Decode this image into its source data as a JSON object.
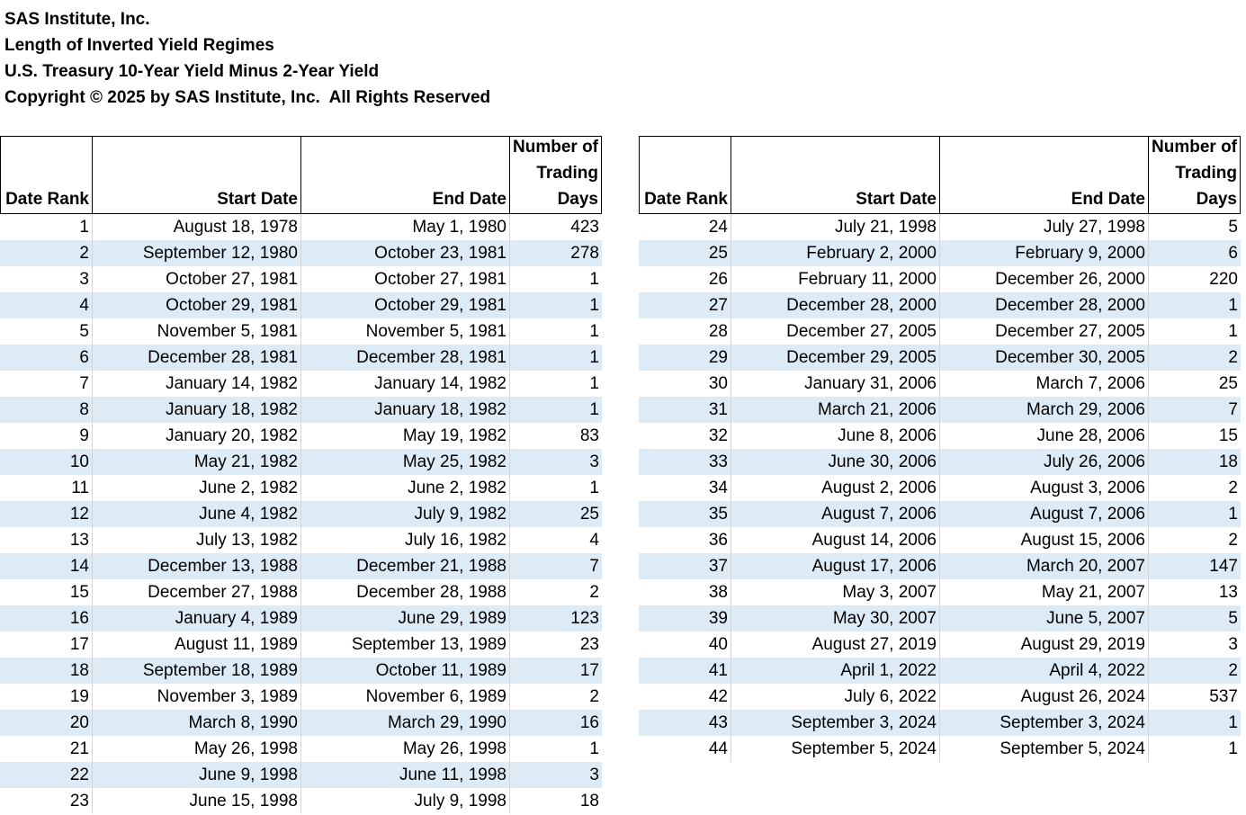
{
  "header": {
    "lines": [
      "SAS Institute, Inc.",
      "Length of Inverted Yield Regimes",
      "U.S. Treasury 10-Year Yield Minus 2-Year Yield",
      "Copyright © 2025 by SAS Institute, Inc.  All Rights Reserved"
    ]
  },
  "tables": [
    {
      "columns": [
        "Date Rank",
        "Start Date",
        "End Date",
        "Number of Trading Days"
      ],
      "rows": [
        [
          1,
          "August 18, 1978",
          "May 1, 1980",
          423
        ],
        [
          2,
          "September 12, 1980",
          "October 23, 1981",
          278
        ],
        [
          3,
          "October 27, 1981",
          "October 27, 1981",
          1
        ],
        [
          4,
          "October 29, 1981",
          "October 29, 1981",
          1
        ],
        [
          5,
          "November 5, 1981",
          "November 5, 1981",
          1
        ],
        [
          6,
          "December 28, 1981",
          "December 28, 1981",
          1
        ],
        [
          7,
          "January 14, 1982",
          "January 14, 1982",
          1
        ],
        [
          8,
          "January 18, 1982",
          "January 18, 1982",
          1
        ],
        [
          9,
          "January 20, 1982",
          "May 19, 1982",
          83
        ],
        [
          10,
          "May 21, 1982",
          "May 25, 1982",
          3
        ],
        [
          11,
          "June 2, 1982",
          "June 2, 1982",
          1
        ],
        [
          12,
          "June 4, 1982",
          "July 9, 1982",
          25
        ],
        [
          13,
          "July 13, 1982",
          "July 16, 1982",
          4
        ],
        [
          14,
          "December 13, 1988",
          "December 21, 1988",
          7
        ],
        [
          15,
          "December 27, 1988",
          "December 28, 1988",
          2
        ],
        [
          16,
          "January 4, 1989",
          "June 29, 1989",
          123
        ],
        [
          17,
          "August 11, 1989",
          "September 13, 1989",
          23
        ],
        [
          18,
          "September 18, 1989",
          "October 11, 1989",
          17
        ],
        [
          19,
          "November 3, 1989",
          "November 6, 1989",
          2
        ],
        [
          20,
          "March 8, 1990",
          "March 29, 1990",
          16
        ],
        [
          21,
          "May 26, 1998",
          "May 26, 1998",
          1
        ],
        [
          22,
          "June 9, 1998",
          "June 11, 1998",
          3
        ],
        [
          23,
          "June 15, 1998",
          "July 9, 1998",
          18
        ]
      ]
    },
    {
      "columns": [
        "Date Rank",
        "Start Date",
        "End Date",
        "Number of Trading Days"
      ],
      "rows": [
        [
          24,
          "July 21, 1998",
          "July 27, 1998",
          5
        ],
        [
          25,
          "February 2, 2000",
          "February 9, 2000",
          6
        ],
        [
          26,
          "February 11, 2000",
          "December 26, 2000",
          220
        ],
        [
          27,
          "December 28, 2000",
          "December 28, 2000",
          1
        ],
        [
          28,
          "December 27, 2005",
          "December 27, 2005",
          1
        ],
        [
          29,
          "December 29, 2005",
          "December 30, 2005",
          2
        ],
        [
          30,
          "January 31, 2006",
          "March 7, 2006",
          25
        ],
        [
          31,
          "March 21, 2006",
          "March 29, 2006",
          7
        ],
        [
          32,
          "June 8, 2006",
          "June 28, 2006",
          15
        ],
        [
          33,
          "June 30, 2006",
          "July 26, 2006",
          18
        ],
        [
          34,
          "August 2, 2006",
          "August 3, 2006",
          2
        ],
        [
          35,
          "August 7, 2006",
          "August 7, 2006",
          1
        ],
        [
          36,
          "August 14, 2006",
          "August 15, 2006",
          2
        ],
        [
          37,
          "August 17, 2006",
          "March 20, 2007",
          147
        ],
        [
          38,
          "May 3, 2007",
          "May 21, 2007",
          13
        ],
        [
          39,
          "May 30, 2007",
          "June 5, 2007",
          5
        ],
        [
          40,
          "August 27, 2019",
          "August 29, 2019",
          3
        ],
        [
          41,
          "April 1, 2022",
          "April 4, 2022",
          2
        ],
        [
          42,
          "July 6, 2022",
          "August 26, 2024",
          537
        ],
        [
          43,
          "September 3, 2024",
          "September 3, 2024",
          1
        ],
        [
          44,
          "September 5, 2024",
          "September 5, 2024",
          1
        ]
      ]
    }
  ]
}
